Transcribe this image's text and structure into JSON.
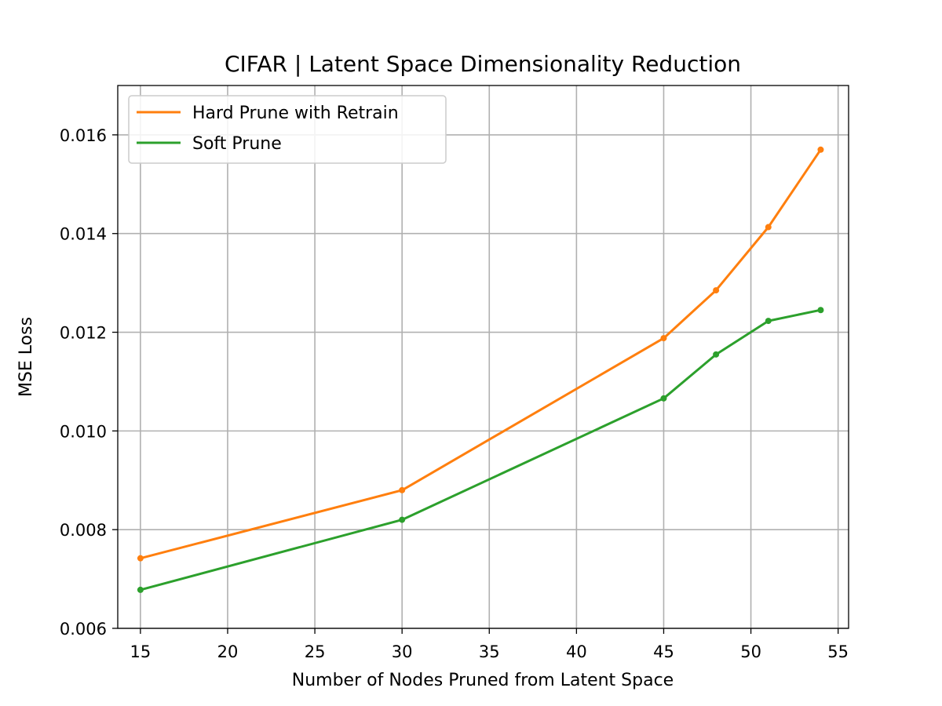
{
  "chart_data": {
    "type": "line",
    "title": "CIFAR | Latent Space Dimensionality Reduction",
    "xlabel": "Number of Nodes Pruned from Latent Space",
    "ylabel": "MSE Loss",
    "xlim": [
      13.7,
      55.6
    ],
    "ylim": [
      0.006,
      0.017
    ],
    "xticks": [
      15,
      20,
      25,
      30,
      35,
      40,
      45,
      50,
      55
    ],
    "yticks": [
      0.006,
      0.008,
      0.01,
      0.012,
      0.014,
      0.016
    ],
    "ytick_labels": [
      "0.006",
      "0.008",
      "0.010",
      "0.012",
      "0.014",
      "0.016"
    ],
    "grid": true,
    "legend_position": "top-left",
    "series": [
      {
        "name": "Hard Prune with Retrain",
        "color": "#ff7f0e",
        "x": [
          15,
          30,
          45,
          48,
          51,
          54
        ],
        "y": [
          0.00742,
          0.0088,
          0.01188,
          0.01285,
          0.01413,
          0.0157
        ]
      },
      {
        "name": "Soft Prune",
        "color": "#2ca02c",
        "x": [
          15,
          30,
          45,
          48,
          51,
          54
        ],
        "y": [
          0.00678,
          0.0082,
          0.01066,
          0.01155,
          0.01223,
          0.01245
        ]
      }
    ]
  }
}
